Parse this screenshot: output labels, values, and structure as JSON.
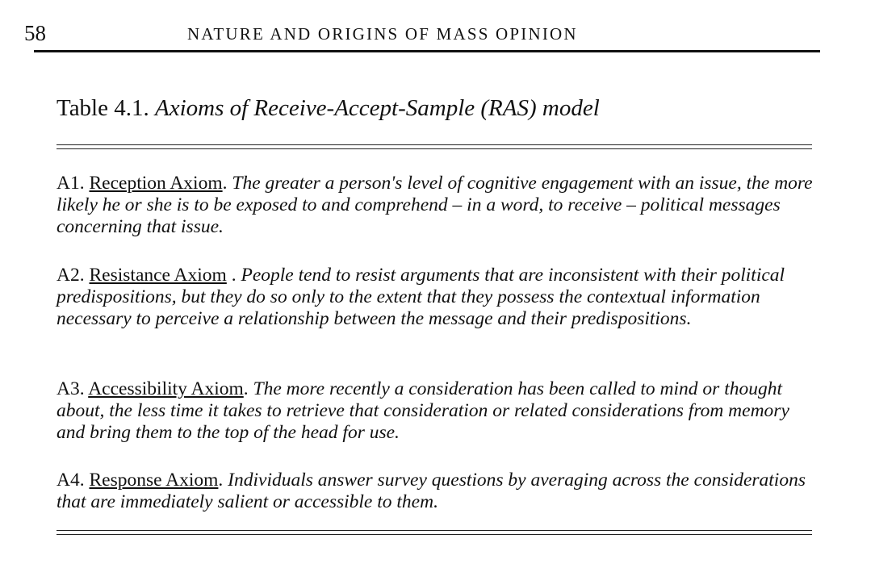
{
  "header": {
    "page_number": "58",
    "running_title": "NATURE AND ORIGINS OF MASS OPINION"
  },
  "table": {
    "label": "Table 4.1.",
    "caption": "Axioms of Receive-Accept-Sample (RAS) model",
    "axioms": [
      {
        "id": "A1.",
        "name": "Reception Axiom",
        "text": "The greater a person's level of cognitive engagement with an issue, the more likely he or she is to be exposed to and comprehend – in a word, to receive – political messages concerning that issue."
      },
      {
        "id": "A2.",
        "name": "Resistance Axiom",
        "text": "People tend to resist arguments that are inconsistent with their political predispositions, but they do so only to the extent that they possess the contextual information necessary to perceive a relationship between the message and their predispositions."
      },
      {
        "id": "A3.",
        "name": "Accessibility Axiom",
        "text": "The more recently a consideration has been called to mind or thought about, the less time it takes to retrieve that consideration or related considerations from memory and bring them to the top of the head for use."
      },
      {
        "id": "A4.",
        "name": "Response Axiom",
        "text": "Individuals answer survey questions by averaging across the considerations that are immediately salient or accessible to them."
      }
    ]
  }
}
